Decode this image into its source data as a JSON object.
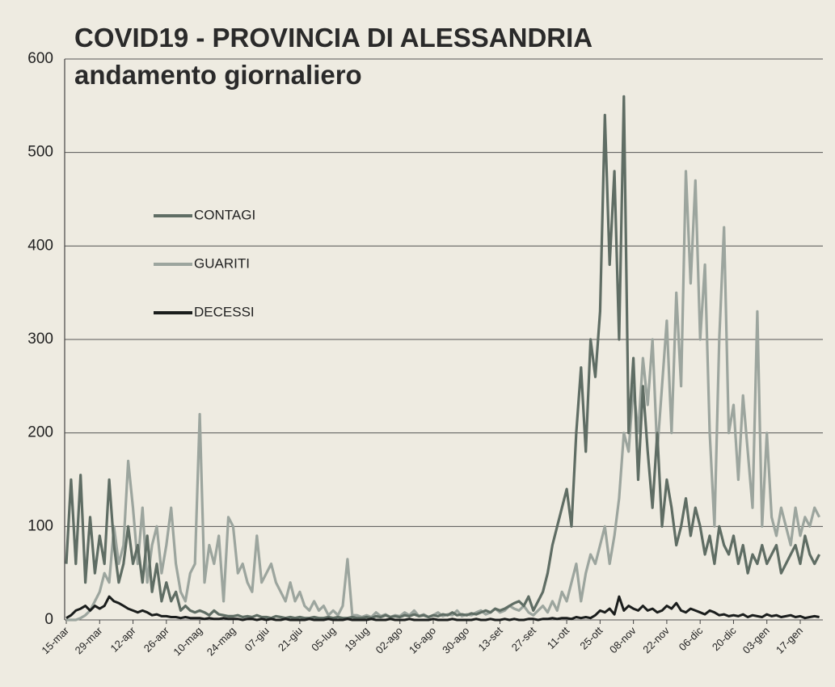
{
  "chart_data": {
    "type": "line",
    "title": "COVID19 - PROVINCIA DI ALESSANDRIA",
    "subtitle": "andamento giornaliero",
    "categories": [
      "15-mar",
      null,
      null,
      null,
      null,
      null,
      null,
      "29-mar",
      null,
      null,
      null,
      null,
      null,
      null,
      "12-apr",
      null,
      null,
      null,
      null,
      null,
      null,
      "26-apr",
      null,
      null,
      null,
      null,
      null,
      null,
      "10-mag",
      null,
      null,
      null,
      null,
      null,
      null,
      "24-mag",
      null,
      null,
      null,
      null,
      null,
      null,
      "07-giu",
      null,
      null,
      null,
      null,
      null,
      null,
      "21-giu",
      null,
      null,
      null,
      null,
      null,
      null,
      "05-lug",
      null,
      null,
      null,
      null,
      null,
      null,
      "19-lug",
      null,
      null,
      null,
      null,
      null,
      null,
      "02-ago",
      null,
      null,
      null,
      null,
      null,
      null,
      "16-ago",
      null,
      null,
      null,
      null,
      null,
      null,
      "30-ago",
      null,
      null,
      null,
      null,
      null,
      null,
      "13-set",
      null,
      null,
      null,
      null,
      null,
      null,
      "27-set",
      null,
      null,
      null,
      null,
      null,
      null,
      "11-ott",
      null,
      null,
      null,
      null,
      null,
      null,
      "25-ott",
      null,
      null,
      null,
      null,
      null,
      null,
      "08-nov",
      null,
      null,
      null,
      null,
      null,
      null,
      "22-nov",
      null,
      null,
      null,
      null,
      null,
      null,
      "06-dic",
      null,
      null,
      null,
      null,
      null,
      null,
      "20-dic",
      null,
      null,
      null,
      null,
      null,
      null,
      "03-gen",
      null,
      null,
      null,
      null,
      null,
      null,
      "17-gen",
      null,
      null,
      null,
      null
    ],
    "series": [
      {
        "name": "CONTAGI",
        "color": "#5f6d64",
        "values": [
          60,
          150,
          60,
          155,
          40,
          110,
          50,
          90,
          60,
          150,
          80,
          40,
          60,
          100,
          60,
          80,
          40,
          90,
          30,
          60,
          20,
          40,
          20,
          30,
          10,
          15,
          10,
          8,
          10,
          8,
          5,
          10,
          6,
          5,
          4,
          4,
          5,
          3,
          4,
          3,
          5,
          3,
          3,
          2,
          4,
          3,
          2,
          3,
          2,
          3,
          2,
          2,
          3,
          2,
          2,
          3,
          2,
          3,
          2,
          2,
          3,
          2,
          2,
          3,
          2,
          4,
          3,
          5,
          3,
          4,
          3,
          5,
          4,
          6,
          4,
          5,
          3,
          5,
          4,
          6,
          5,
          8,
          5,
          6,
          5,
          7,
          6,
          8,
          10,
          8,
          12,
          10,
          12,
          15,
          18,
          20,
          15,
          25,
          10,
          20,
          30,
          50,
          80,
          100,
          120,
          140,
          100,
          200,
          270,
          180,
          300,
          260,
          330,
          540,
          380,
          480,
          300,
          560,
          200,
          280,
          150,
          250,
          180,
          120,
          200,
          100,
          150,
          120,
          80,
          100,
          130,
          90,
          120,
          100,
          70,
          90,
          60,
          100,
          80,
          70,
          90,
          60,
          80,
          50,
          70,
          60,
          80,
          60,
          70,
          80,
          50,
          60,
          70,
          80,
          60,
          90,
          70,
          60,
          70
        ]
      },
      {
        "name": "GUARITI",
        "color": "#9ca59e",
        "values": [
          0,
          0,
          0,
          2,
          5,
          10,
          20,
          30,
          50,
          40,
          100,
          60,
          80,
          170,
          120,
          60,
          120,
          40,
          80,
          100,
          50,
          80,
          120,
          60,
          30,
          20,
          50,
          60,
          220,
          40,
          80,
          60,
          90,
          20,
          110,
          100,
          50,
          60,
          40,
          30,
          90,
          40,
          50,
          60,
          40,
          30,
          20,
          40,
          20,
          30,
          15,
          10,
          20,
          10,
          15,
          5,
          10,
          5,
          15,
          65,
          5,
          5,
          3,
          5,
          3,
          8,
          4,
          6,
          3,
          5,
          4,
          8,
          5,
          10,
          4,
          6,
          3,
          5,
          8,
          4,
          6,
          5,
          10,
          4,
          6,
          5,
          8,
          10,
          6,
          8,
          12,
          8,
          10,
          15,
          12,
          10,
          15,
          8,
          5,
          10,
          15,
          8,
          20,
          10,
          30,
          20,
          40,
          60,
          20,
          50,
          70,
          60,
          80,
          100,
          60,
          90,
          130,
          200,
          180,
          250,
          200,
          280,
          230,
          300,
          180,
          250,
          320,
          200,
          350,
          250,
          480,
          360,
          470,
          300,
          380,
          200,
          100,
          300,
          420,
          200,
          230,
          150,
          240,
          180,
          120,
          330,
          100,
          200,
          110,
          90,
          120,
          100,
          80,
          120,
          90,
          110,
          100,
          120,
          110
        ]
      },
      {
        "name": "DECESSI",
        "color": "#1a1d1c",
        "values": [
          2,
          5,
          10,
          12,
          15,
          10,
          15,
          12,
          15,
          25,
          20,
          18,
          15,
          12,
          10,
          8,
          10,
          8,
          5,
          6,
          4,
          4,
          3,
          3,
          2,
          3,
          2,
          2,
          2,
          1,
          2,
          1,
          1,
          2,
          1,
          1,
          1,
          0,
          1,
          1,
          0,
          1,
          0,
          1,
          0,
          0,
          1,
          0,
          0,
          0,
          0,
          1,
          0,
          0,
          0,
          1,
          0,
          0,
          0,
          1,
          0,
          0,
          0,
          0,
          1,
          0,
          0,
          0,
          1,
          0,
          0,
          0,
          1,
          0,
          0,
          0,
          0,
          1,
          0,
          0,
          0,
          1,
          0,
          0,
          0,
          0,
          1,
          0,
          0,
          1,
          0,
          0,
          1,
          0,
          1,
          0,
          0,
          1,
          1,
          0,
          1,
          1,
          2,
          1,
          2,
          2,
          1,
          3,
          2,
          3,
          2,
          5,
          10,
          8,
          12,
          6,
          25,
          10,
          15,
          12,
          10,
          15,
          10,
          12,
          8,
          10,
          15,
          12,
          18,
          10,
          8,
          12,
          10,
          8,
          6,
          10,
          8,
          5,
          6,
          4,
          5,
          4,
          6,
          3,
          5,
          4,
          3,
          6,
          4,
          5,
          3,
          4,
          5,
          3,
          4,
          2,
          3,
          4,
          3
        ]
      }
    ],
    "ylim": [
      0,
      600
    ],
    "yticks": [
      0,
      100,
      200,
      300,
      400,
      500,
      600
    ],
    "grid": true,
    "legend": "upper left"
  }
}
